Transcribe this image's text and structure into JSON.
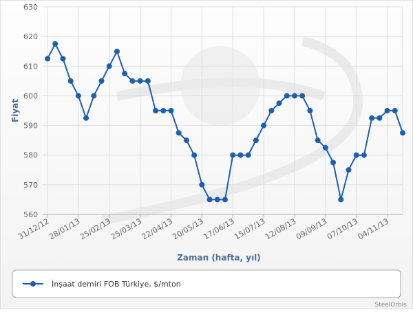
{
  "chart_data": {
    "type": "line",
    "title": "",
    "xlabel": "Zaman (hafta, yıl)",
    "ylabel": "Fiyat",
    "ylim": [
      560,
      630
    ],
    "yticks": [
      560,
      570,
      580,
      590,
      600,
      610,
      620,
      630
    ],
    "grid": true,
    "legend_position": "bottom",
    "tick_labels": [
      "31/12/12",
      "28/01/13",
      "25/02/13",
      "25/03/13",
      "22/04/13",
      "20/05/13",
      "17/06/13",
      "15/07/13",
      "12/08/13",
      "09/09/13",
      "07/10/13",
      "04/11/13"
    ],
    "tick_indices": [
      0,
      4,
      8,
      12,
      16,
      20,
      24,
      28,
      32,
      36,
      40,
      44
    ],
    "series": [
      {
        "name": "İnşaat demiri FOB Türkiye, $/mton",
        "color": "#1c5fb0",
        "values": [
          612.5,
          617.5,
          612.5,
          605,
          600,
          592.5,
          600,
          605,
          610,
          615,
          607.5,
          605,
          605,
          605,
          595,
          595,
          595,
          587.5,
          585,
          580,
          570,
          565,
          565,
          565,
          580,
          580,
          580,
          585,
          590,
          595,
          597.5,
          600,
          600,
          600,
          595,
          585,
          582.5,
          577.5,
          565,
          575,
          580,
          580,
          592.5,
          592.5,
          595,
          595,
          587.5
        ]
      }
    ]
  },
  "credit": "SteelOrbis"
}
